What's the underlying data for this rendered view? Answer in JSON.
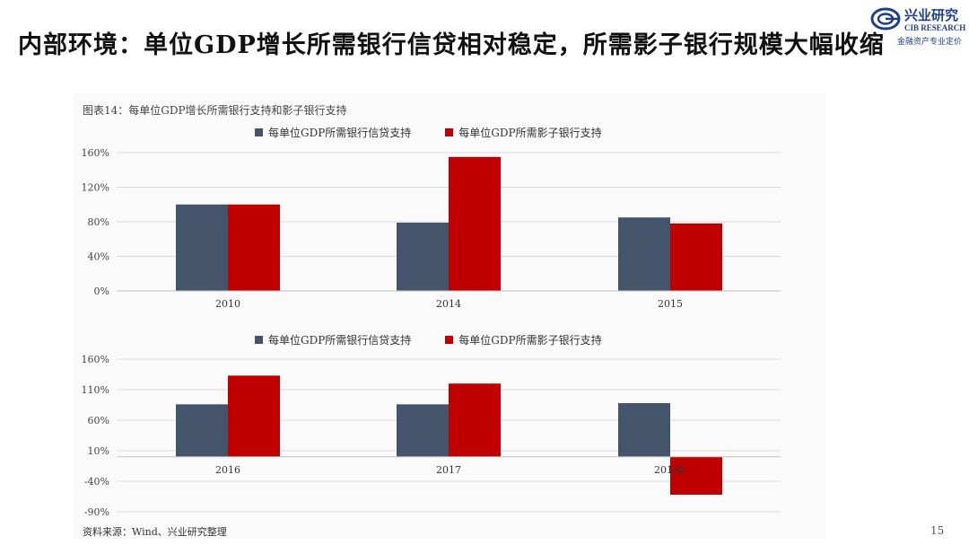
{
  "slide": {
    "title": "内部环境：单位GDP增长所需银行信贷相对稳定，所需影子银行规模大幅收缩",
    "page_number": "15",
    "source": "资料来源：Wind、兴业研究整理",
    "figure_caption": "图表14：每单位GDP增长所需银行支持和影子银行支持"
  },
  "logo": {
    "name_cn": "兴业研究",
    "name_en": "CIB RESEARCH",
    "tagline": "金融资产专业定价",
    "color": "#1f3f8c"
  },
  "colors": {
    "bank": "#44546a",
    "shadow": "#c00000"
  },
  "chart_data": [
    {
      "type": "bar",
      "categories": [
        "2010",
        "2014",
        "2015"
      ],
      "series": [
        {
          "name": "每单位GDP所需银行信贷支持",
          "values": [
            100,
            79,
            85
          ]
        },
        {
          "name": "每单位GDP所需影子银行支持",
          "values": [
            100,
            155,
            78
          ]
        }
      ],
      "yticks": [
        "0%",
        "40%",
        "80%",
        "120%",
        "160%"
      ],
      "ylim": [
        0,
        160
      ],
      "grid": true,
      "legend": "top"
    },
    {
      "type": "bar",
      "categories": [
        "2016",
        "2017",
        "2018E"
      ],
      "series": [
        {
          "name": "每单位GDP所需银行信贷支持",
          "values": [
            86,
            86,
            88
          ]
        },
        {
          "name": "每单位GDP所需影子银行支持",
          "values": [
            133,
            120,
            -62
          ]
        }
      ],
      "yticks": [
        "-90%",
        "-40%",
        "10%",
        "60%",
        "110%",
        "160%"
      ],
      "ylim": [
        -90,
        160
      ],
      "grid": true,
      "legend": "top"
    }
  ]
}
